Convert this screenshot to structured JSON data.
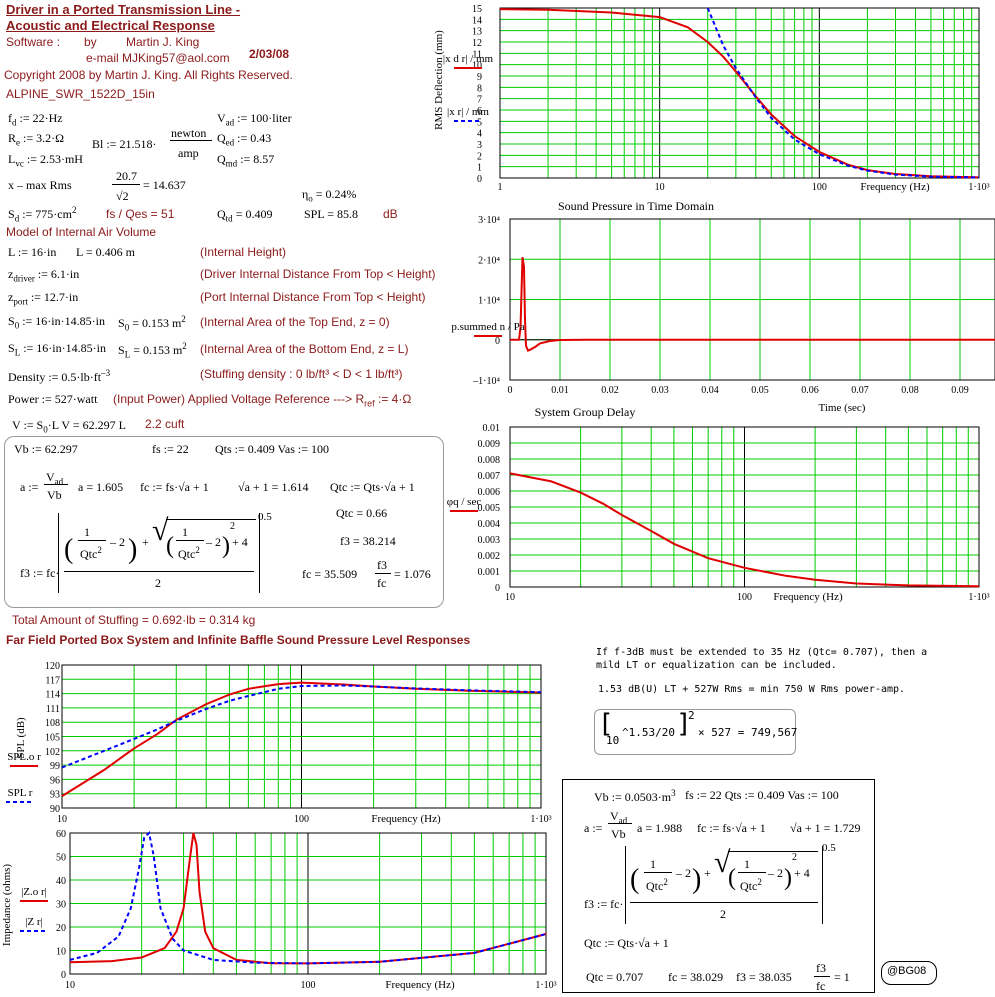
{
  "header": {
    "title_line1": "Driver in a Ported Transmission Line -",
    "title_line2": "Acoustic and Electrical Response",
    "software_label": "Software :",
    "by_label": "by",
    "author": "Martin J. King",
    "email": "e-mail  MJKing57@aol.com",
    "date": "2/03/08",
    "copyright": "Copyright 2008 by Martin J. King. All Rights Reserved.",
    "driver_id": "ALPINE_SWR_1522D_15in"
  },
  "params": {
    "fd": "f",
    "fd_sub": "d",
    "fd_val": ":= 22·Hz",
    "re": "R",
    "re_sub": "e",
    "re_val": ":= 3.2·Ω",
    "lvc": "L",
    "lvc_sub": "vc",
    "lvc_val": ":= 2.53·mH",
    "bl_pre": "Bl := 21.518·",
    "bl_num": "newton",
    "bl_den": "amp",
    "vad": "V",
    "vad_sub": "ad",
    "vad_val": ":= 100·liter",
    "qed": "Q",
    "qed_sub": "ed",
    "qed_val": ":= 0.43",
    "qmd": "Q",
    "qmd_sub": "md",
    "qmd_val": ":= 8.57",
    "xmax_label": "x – max    Rms",
    "xmax_num": "20.7",
    "xmax_den": "√2",
    "xmax_val": "= 14.637",
    "eta": "η",
    "eta_sub": "o",
    "eta_val": "= 0.24%",
    "sd": "S",
    "sd_sub": "d",
    "sd_val": ":= 775·cm",
    "sd_sup": "2",
    "fs_qes": "fs / Qes =  51",
    "qtd": "Q",
    "qtd_sub": "td",
    "qtd_val": "= 0.409",
    "spl_val": "SPL = 85.8",
    "spl_unit": "dB"
  },
  "model": {
    "heading": "Model of Internal Air Volume",
    "L_def": "L := 16·in",
    "L_val": "L = 0.406 m",
    "L_note": "(Internal Height)",
    "zd_def": "z",
    "zd_sub": "driver",
    "zd_val": ":= 6.1·in",
    "zd_note": "(Driver Internal Distance From Top < Height)",
    "zp_def": "z",
    "zp_sub": "port",
    "zp_val": ":= 12.7·in",
    "zp_note": "(Port Internal Distance From Top < Height)",
    "s0_def": "S",
    "s0_sub": "0",
    "s0_val": ":= 16·in·14.85·in",
    "s0_res": "S",
    "s0_res_sub": "0",
    "s0_res_val": "= 0.153 m",
    "s0_sup": "2",
    "s0_note": "(Internal Area of the Top End, z = 0)",
    "sl_def": "S",
    "sl_sub": "L",
    "sl_val": ":= 16·in·14.85·in",
    "sl_res": "S",
    "sl_res_sub": "L",
    "sl_res_val": "= 0.153 m",
    "sl_sup": "2",
    "sl_note": "(Internal Area of the Bottom End, z = L)",
    "density_def": "Density := 0.5·lb·ft",
    "density_sup": "–3",
    "density_note": "(Stuffing density : 0 lb/ft³ < D < 1 lb/ft³)",
    "power_def": "Power := 527·watt",
    "power_note": "(Input Power)   Applied Voltage Reference ---> R",
    "power_note_sub": "ref",
    "power_note_val": ":= 4·Ω",
    "v_def": "V := S",
    "v_def_sub": "0",
    "v_def_tail": "·L    V = 62.297 L",
    "v_cuft": "2.2 cuft"
  },
  "calc1": {
    "vb": "Vb := 62.297",
    "fs": "fs := 22",
    "qts": "Qts := 0.409   Vas := 100",
    "a_lhs": "a :=",
    "a_num": "V",
    "a_num_sub": "ad",
    "a_den": "Vb",
    "a_val": "a = 1.605",
    "fc_def": "fc := fs·√a + 1",
    "sqrt_val": "√a + 1 = 1.614",
    "qtc_def": "Qtc := Qts·√a + 1",
    "qtc_val": "Qtc = 0.66",
    "f3_val": "f3 = 38.214",
    "f3_lhs": "f3 := fc·",
    "fc_val": "fc = 35.509",
    "ratio_num": "f3",
    "ratio_den": "fc",
    "ratio_val": "= 1.076",
    "exp": "0.5",
    "one": "1",
    "qtc": "Qtc",
    "sq": "2",
    "minus2": "– 2",
    "plus": "+",
    "plus4": "+ 4",
    "two": "2"
  },
  "stuffing": "Total Amount of Stuffing   = 0.692·lb = 0.314 kg",
  "far_field_heading": "Far Field Ported Box System and Infinite Baffle Sound Pressure Level Responses",
  "notes": {
    "line1": "If f-3dB must be extended to 35 Hz (Qtc= 0.707), then a",
    "line2": "mild LT or equalization can be included.",
    "line3": "1.53 dB(U) LT + 527W Rms = min 750 W Rms power-amp.",
    "formula_base": "10",
    "formula_exp": "1.53/20",
    "formula_sq": "2",
    "formula_tail": "× 527 = 749,567"
  },
  "calc2": {
    "vb": "Vb := 0.0503·m",
    "vb_sup": "3",
    "fs_qts": "fs := 22   Qts := 0.409   Vas := 100",
    "a_lhs": "a :=",
    "a_num": "V",
    "a_num_sub": "ad",
    "a_den": "Vb",
    "a_val": "a = 1.988",
    "fc_def": "fc := fs·√a + 1",
    "sqrt_val": "√a + 1 = 1.729",
    "exp": "0.5",
    "f3_lhs": "f3 := fc·",
    "qtc_def": "Qtc := Qts·√a + 1",
    "qtc_val": "Qtc = 0.707",
    "fc_val": "fc = 38.029",
    "f3_val": "f3 = 38.035",
    "ratio_num": "f3",
    "ratio_den": "fc",
    "ratio_val": "= 1",
    "one": "1",
    "qtc": "Qtc",
    "sq": "2",
    "minus2": "– 2",
    "plus4": "+ 4",
    "plus": "+",
    "two": "2"
  },
  "stamp": "@BG08",
  "colors": {
    "red": "#e00000",
    "blue": "#0000ff",
    "grid": "#00cc00",
    "maroon": "#8b1a1a"
  },
  "chart_data": [
    {
      "type": "line",
      "id": "deflection",
      "title": "",
      "xlabel": "Frequency (Hz)",
      "ylabel": "RMS Deflection (mm)",
      "xscale": "log",
      "xlim": [
        1,
        1000
      ],
      "ylim": [
        0,
        15
      ],
      "x_ticks": [
        "1",
        "10",
        "100",
        "1·10³"
      ],
      "y_ticks": [
        "0",
        "1",
        "2",
        "3",
        "4",
        "5",
        "6",
        "7",
        "8",
        "9",
        "10",
        "11",
        "12",
        "13",
        "14",
        "15"
      ],
      "legend": [
        {
          "name": "|x_d_r| / mm",
          "color": "#e00000",
          "style": "solid"
        },
        {
          "name": "|x_r| / mm",
          "color": "#0000ff",
          "style": "dashed"
        }
      ],
      "series": [
        {
          "name": "driver",
          "color": "#e00000",
          "x": [
            1,
            2,
            5,
            10,
            15,
            20,
            25,
            30,
            40,
            50,
            70,
            100,
            150,
            200,
            300,
            500,
            1000
          ],
          "y": [
            14.9,
            14.85,
            14.6,
            14.2,
            13.3,
            12.0,
            10.7,
            9.4,
            7.2,
            5.6,
            3.7,
            2.3,
            1.2,
            0.7,
            0.35,
            0.15,
            0.05
          ]
        },
        {
          "name": "infinite baffle",
          "color": "#0000ff",
          "x": [
            20,
            25,
            30,
            40,
            50,
            70,
            100,
            150,
            200,
            300,
            500,
            1000
          ],
          "y": [
            15.0,
            11.7,
            9.7,
            7.1,
            5.3,
            3.4,
            2.1,
            1.1,
            0.65,
            0.3,
            0.12,
            0.04
          ]
        }
      ]
    },
    {
      "type": "line",
      "id": "time_domain",
      "title": "Sound Pressure in Time Domain",
      "xlabel": "Time (sec)",
      "ylabel": "p.summed_n / Pa",
      "xlim": [
        0,
        0.097
      ],
      "ylim": [
        -10000,
        30000
      ],
      "x_ticks": [
        "0",
        "0.01",
        "0.02",
        "0.03",
        "0.04",
        "0.05",
        "0.06",
        "0.07",
        "0.08",
        "0.09"
      ],
      "y_ticks": [
        "–1·10⁴",
        "0",
        "1·10⁴",
        "2·10⁴",
        "3·10⁴"
      ],
      "series": [
        {
          "name": "pressure",
          "color": "#e00000",
          "x": [
            0,
            0.0018,
            0.0021,
            0.0025,
            0.0028,
            0.003,
            0.0032,
            0.0036,
            0.004,
            0.005,
            0.006,
            0.008,
            0.01,
            0.015,
            0.02,
            0.097
          ],
          "y": [
            0,
            0,
            3000,
            20500,
            18000,
            5000,
            -1500,
            -2700,
            -2500,
            -1800,
            -900,
            -300,
            -50,
            0,
            0,
            0
          ]
        }
      ]
    },
    {
      "type": "line",
      "id": "group_delay",
      "title": "System Group Delay",
      "xlabel": "Frequency (Hz)",
      "ylabel": "φq / sec",
      "xscale": "log",
      "xlim": [
        10,
        1000
      ],
      "ylim": [
        0,
        0.01
      ],
      "x_ticks": [
        "10",
        "100",
        "1·10³"
      ],
      "y_ticks": [
        "0",
        "0.001",
        "0.002",
        "0.003",
        "0.004",
        "0.005",
        "0.006",
        "0.007",
        "0.008",
        "0.009",
        "0.01"
      ],
      "series": [
        {
          "name": "delay",
          "color": "#e00000",
          "x": [
            10,
            15,
            20,
            25,
            30,
            40,
            50,
            70,
            100,
            150,
            200,
            300,
            500,
            1000
          ],
          "y": [
            0.0071,
            0.0066,
            0.0059,
            0.0052,
            0.0045,
            0.0035,
            0.0027,
            0.0018,
            0.0012,
            0.0007,
            0.00045,
            0.00022,
            0.0001,
            5e-05
          ]
        }
      ]
    },
    {
      "type": "line",
      "id": "spl",
      "title": "",
      "xlabel": "Frequency (Hz)",
      "ylabel": "SPL (dB)",
      "xscale": "log",
      "xlim": [
        10,
        1000
      ],
      "ylim": [
        90,
        120
      ],
      "x_ticks": [
        "10",
        "100",
        "1·10³"
      ],
      "y_ticks": [
        "90",
        "93",
        "96",
        "99",
        "102",
        "105",
        "108",
        "111",
        "114",
        "117",
        "120"
      ],
      "legend": [
        {
          "name": "SPL.o_r",
          "color": "#e00000",
          "style": "solid"
        },
        {
          "name": "SPL_r",
          "color": "#0000ff",
          "style": "dashed"
        }
      ],
      "series": [
        {
          "name": "ported",
          "color": "#e00000",
          "x": [
            10,
            15,
            20,
            25,
            30,
            40,
            50,
            60,
            80,
            100,
            150,
            200,
            300,
            500,
            1000
          ],
          "y": [
            92.5,
            98,
            102.5,
            105.5,
            108.5,
            111.8,
            113.8,
            115,
            116,
            116.3,
            115.9,
            115.5,
            115,
            114.6,
            114.2
          ]
        },
        {
          "name": "infinite baffle",
          "color": "#0000ff",
          "x": [
            10,
            15,
            20,
            25,
            30,
            40,
            50,
            60,
            80,
            100,
            150,
            200,
            300,
            500,
            1000
          ],
          "y": [
            98.5,
            102,
            104.5,
            106.5,
            108.3,
            110.8,
            112.5,
            113.5,
            115,
            115.6,
            115.7,
            115.5,
            115.1,
            114.7,
            114.3
          ]
        }
      ]
    },
    {
      "type": "line",
      "id": "impedance",
      "title": "",
      "xlabel": "Frequency (Hz)",
      "ylabel": "Impedance (ohms)",
      "xscale": "log",
      "xlim": [
        10,
        1000
      ],
      "ylim": [
        0,
        60
      ],
      "x_ticks": [
        "10",
        "100",
        "1·10³"
      ],
      "y_ticks": [
        "0",
        "10",
        "20",
        "30",
        "40",
        "50",
        "60"
      ],
      "legend": [
        {
          "name": "|Z.o_r|",
          "color": "#e00000",
          "style": "solid"
        },
        {
          "name": "|Z_r|",
          "color": "#0000ff",
          "style": "dashed"
        }
      ],
      "series": [
        {
          "name": "ported",
          "color": "#e00000",
          "x": [
            10,
            15,
            20,
            25,
            28,
            30,
            32,
            33,
            34,
            35,
            37,
            40,
            50,
            70,
            100,
            200,
            500,
            1000
          ],
          "y": [
            5,
            5.5,
            7,
            11,
            18,
            28,
            50,
            60,
            55,
            35,
            18,
            11,
            6,
            4.6,
            4.5,
            5.2,
            9,
            17
          ]
        },
        {
          "name": "infinite baffle",
          "color": "#0000ff",
          "x": [
            10,
            13,
            16,
            18,
            19.5,
            20.5,
            21.5,
            22.5,
            24,
            27,
            30,
            40,
            60,
            100,
            200,
            500,
            1000
          ],
          "y": [
            6,
            9,
            16,
            28,
            45,
            58,
            60,
            50,
            28,
            15,
            10,
            6,
            4.8,
            4.5,
            5.2,
            9,
            17
          ]
        }
      ]
    }
  ]
}
